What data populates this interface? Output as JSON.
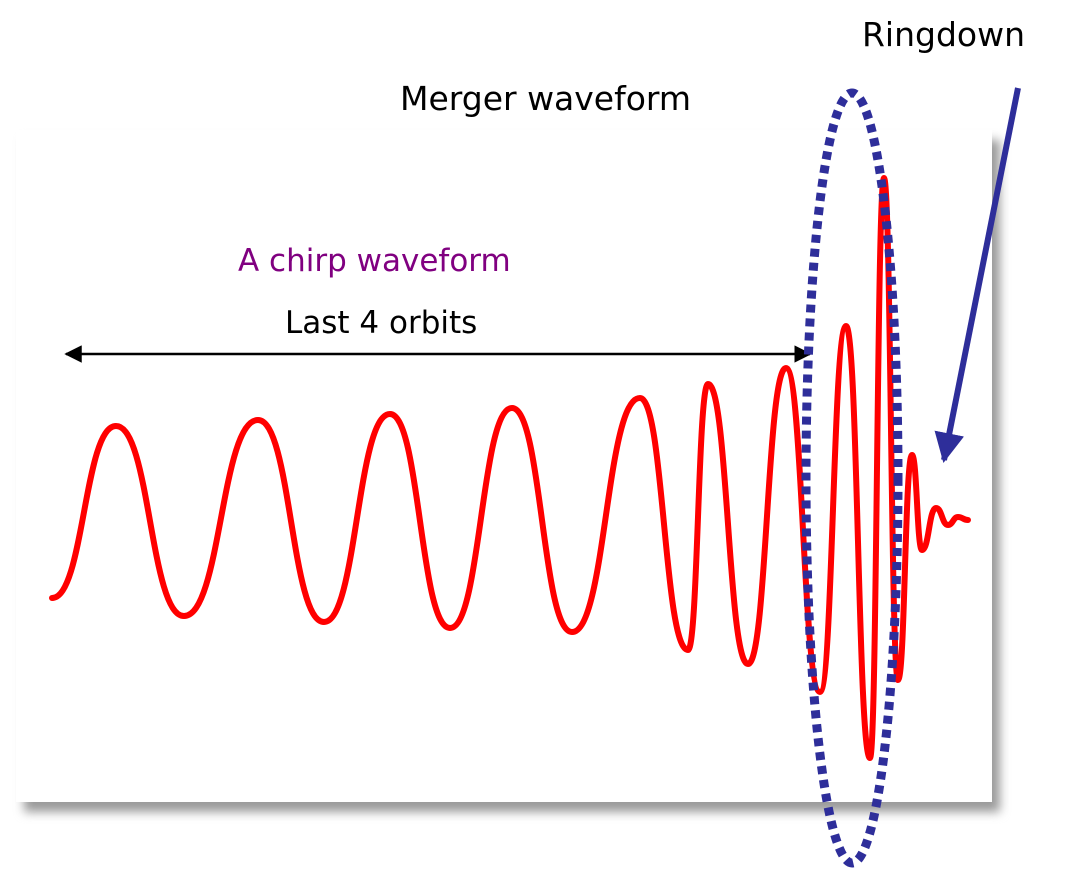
{
  "labels": {
    "ringdown": "Ringdown",
    "merger": "Merger waveform",
    "chirp": "A chirp waveform",
    "orbits": "Last 4 orbits"
  },
  "colors": {
    "waveform": "#ff0000",
    "chirp_label": "#800080",
    "merger_ellipse": "#2e2e9a",
    "ringdown_arrow": "#2e2e9a",
    "orbits_arrow": "#000000"
  }
}
